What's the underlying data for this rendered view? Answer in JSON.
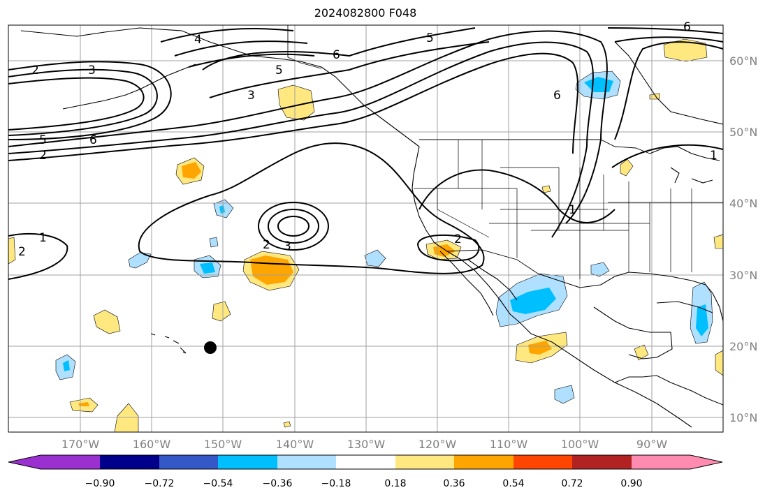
{
  "title": "2024082800 F048",
  "lat_labels": [
    "60°N",
    "50°N",
    "40°N",
    "30°N",
    "20°N",
    "10°N"
  ],
  "lon_labels": [
    "170°W",
    "160°W",
    "150°W",
    "140°W",
    "130°W",
    "120°W",
    "110°W",
    "100°W",
    "90°W"
  ],
  "colorbar": {
    "ticks": [
      "−0.90",
      "−0.72",
      "−0.54",
      "−0.36",
      "−0.18",
      "0.18",
      "0.36",
      "0.54",
      "0.72",
      "0.90"
    ],
    "colors": [
      "#9b30d0",
      "#00008b",
      "#3558c8",
      "#00bfff",
      "#b0e0ff",
      "#ffffff",
      "#ffe880",
      "#ffa500",
      "#ff4500",
      "#b22222",
      "#ff8cb0"
    ]
  },
  "contour_labels": [
    "2",
    "3",
    "4",
    "5",
    "6",
    "5",
    "3",
    "6",
    "5",
    "6",
    "2",
    "1",
    "2",
    "2",
    "3",
    "2",
    "1",
    "1",
    "6"
  ],
  "colors": {
    "land_line": "#000000",
    "grid": "#a0a0a0",
    "pos_light": "#ffe880",
    "pos_mid": "#ffa500",
    "neg_light": "#b0e0ff",
    "neg_mid": "#00bfff"
  },
  "markers": [
    {
      "name": "storm-center",
      "symbol": "filled-circle"
    }
  ]
}
